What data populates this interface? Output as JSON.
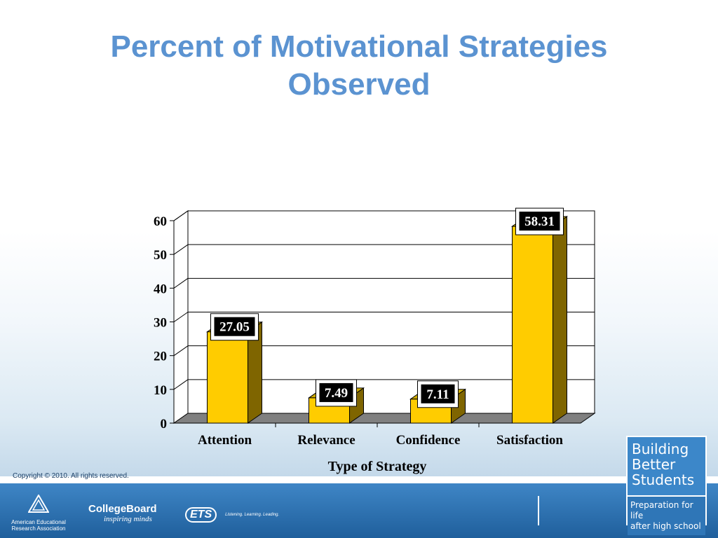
{
  "slide": {
    "title_line1": "Percent of Motivational Strategies",
    "title_line2": "Observed",
    "copyright": "Copyright © 2010. All rights reserved."
  },
  "footer": {
    "aera_line1": "American Educational",
    "aera_line2": "Research Association",
    "collegeboard_name": "CollegeBoard",
    "collegeboard_tag": "inspiring minds",
    "ets_name": "ETS",
    "ets_tag": "Listening. Learning. Leading.",
    "bbs_line1": "Building",
    "bbs_line2": "Better",
    "bbs_line3": "Students",
    "bbs_sub1": "Preparation for life",
    "bbs_sub2": "after high school"
  },
  "chart_data": {
    "type": "bar",
    "categories": [
      "Attention",
      "Relevance",
      "Confidence",
      "Satisfaction"
    ],
    "values": [
      27.05,
      7.49,
      7.11,
      58.31
    ],
    "value_labels": [
      "27.05",
      "7.49",
      "7.11",
      "58.31"
    ],
    "xlabel": "Type of Strategy",
    "ylabel": "",
    "ylim": [
      0,
      60
    ],
    "yticks": [
      "0",
      "10",
      "20",
      "30",
      "40",
      "50",
      "60"
    ],
    "grid": true,
    "style": "3d",
    "colors": {
      "bar_front": "#ffcc00",
      "bar_side": "#7f6500",
      "bar_top": "#ccaa00",
      "floor": "#808080"
    }
  }
}
